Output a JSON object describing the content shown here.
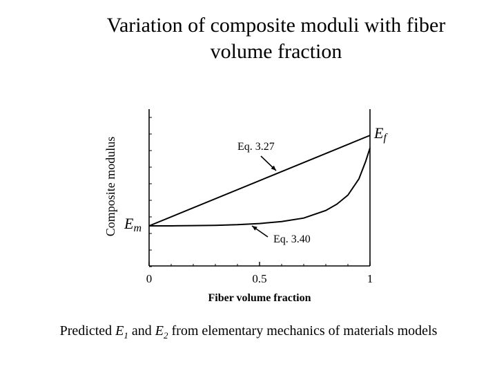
{
  "title": {
    "line1": "Variation of composite moduli with fiber",
    "line2": "volume fraction"
  },
  "caption": {
    "prefix": "Predicted ",
    "e1_letter": "E",
    "e1_sub": "1",
    "and": " and ",
    "e2_letter": "E",
    "e2_sub": "2",
    "suffix": " from elementary mechanics of materials models"
  },
  "chart_data": {
    "type": "line",
    "xlabel": "Fiber volume fraction",
    "ylabel": "Composite modulus",
    "xlim": [
      0,
      1
    ],
    "x_ticks": [
      {
        "value": 0,
        "label": "0"
      },
      {
        "value": 0.5,
        "label": "0.5"
      },
      {
        "value": 1,
        "label": "1"
      }
    ],
    "y_ticks_labeled": false,
    "grid": false,
    "y_markers": [
      {
        "label_letter": "E",
        "label_sub": "m",
        "at": "x=0"
      },
      {
        "label_letter": "E",
        "label_sub": "f",
        "at": "x=1"
      }
    ],
    "series": [
      {
        "name": "Eq. 3.27",
        "description_values": "linear, normalized modulus 0 at x=0 to 1 at x=1",
        "x": [
          0,
          1
        ],
        "y": [
          0,
          1
        ]
      },
      {
        "name": "Eq. 3.40",
        "x": [
          0,
          0.1,
          0.2,
          0.3,
          0.4,
          0.5,
          0.6,
          0.7,
          0.8,
          0.85,
          0.9,
          0.95,
          0.98,
          1.0
        ],
        "y": [
          0,
          0.0,
          0.003,
          0.006,
          0.013,
          0.026,
          0.047,
          0.086,
          0.17,
          0.24,
          0.34,
          0.52,
          0.71,
          0.86
        ]
      }
    ],
    "annotations": [
      {
        "text": "Eq. 3.27",
        "points_to": "Eq. 3.27",
        "at_x": 0.6
      },
      {
        "text": "Eq. 3.40",
        "points_to": "Eq. 3.40",
        "at_x": 0.45
      }
    ]
  }
}
